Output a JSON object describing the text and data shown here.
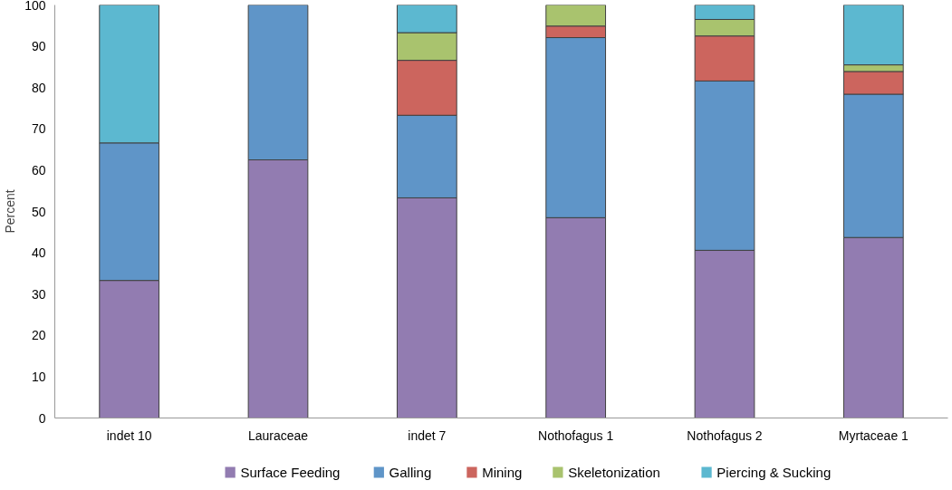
{
  "chart_data": {
    "type": "bar",
    "stacked": true,
    "ylabel": "Percent",
    "categories": [
      "indet 10",
      "Lauraceae",
      "indet 7",
      "Nothofagus 1",
      "Nothofagus 2",
      "Myrtaceae 1"
    ],
    "series": [
      {
        "name": "Surface Feeding",
        "color": "#927cb1",
        "values": [
          33.3,
          62.5,
          53.3,
          48.5,
          40.6,
          43.7
        ]
      },
      {
        "name": "Galling",
        "color": "#5f95c8",
        "values": [
          33.3,
          37.5,
          20.0,
          43.6,
          41.0,
          34.7
        ]
      },
      {
        "name": "Mining",
        "color": "#cc655e",
        "values": [
          0,
          0,
          13.3,
          2.8,
          10.9,
          5.5
        ]
      },
      {
        "name": "Skeletonization",
        "color": "#a9c36e",
        "values": [
          0,
          0,
          6.7,
          5.1,
          4.0,
          1.6
        ]
      },
      {
        "name": "Piercing & Sucking",
        "color": "#5cb8d0",
        "values": [
          33.4,
          0,
          6.7,
          0,
          3.5,
          14.5
        ]
      }
    ],
    "ylim": [
      0,
      100
    ],
    "yticks": [
      0,
      10,
      20,
      30,
      40,
      50,
      60,
      70,
      80,
      90,
      100
    ],
    "grid": false,
    "legend": "bottom"
  }
}
